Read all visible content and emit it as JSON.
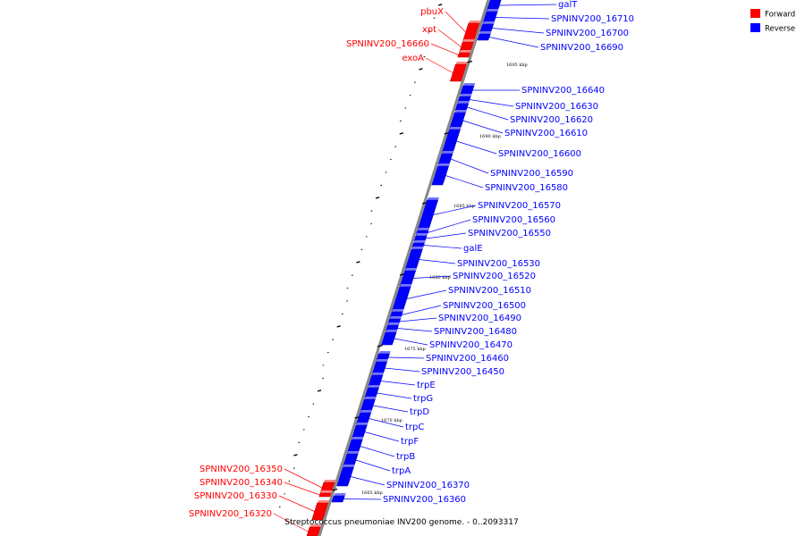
{
  "caption": "Streptococcus pneumoniae INV200 genome. - 0..2093317",
  "legend": [
    {
      "label": "Forward",
      "color": "#ff0000"
    },
    {
      "label": "Reverse",
      "color": "#0000ff"
    }
  ],
  "colors": {
    "forward": "#ff0000",
    "reverse": "#0000ff",
    "backbone": "#888888"
  },
  "ticks": [
    "1695 kbp",
    "1690 kbp",
    "1685 kbp",
    "1680 kbp",
    "1675 kbp",
    "1670 kbp",
    "1665 kbp"
  ],
  "genes": [
    {
      "name": "galT",
      "strand": "reverse"
    },
    {
      "name": "SPNINV200_16710",
      "strand": "reverse"
    },
    {
      "name": "SPNINV200_16700",
      "strand": "reverse"
    },
    {
      "name": "SPNINV200_16690",
      "strand": "reverse"
    },
    {
      "name": "pbuX",
      "strand": "forward"
    },
    {
      "name": "xpt",
      "strand": "forward"
    },
    {
      "name": "SPNINV200_16660",
      "strand": "forward"
    },
    {
      "name": "exoA",
      "strand": "forward"
    },
    {
      "name": "SPNINV200_16640",
      "strand": "reverse"
    },
    {
      "name": "SPNINV200_16630",
      "strand": "reverse"
    },
    {
      "name": "SPNINV200_16620",
      "strand": "reverse"
    },
    {
      "name": "SPNINV200_16610",
      "strand": "reverse"
    },
    {
      "name": "SPNINV200_16600",
      "strand": "reverse"
    },
    {
      "name": "SPNINV200_16590",
      "strand": "reverse"
    },
    {
      "name": "SPNINV200_16580",
      "strand": "reverse"
    },
    {
      "name": "SPNINV200_16570",
      "strand": "reverse"
    },
    {
      "name": "SPNINV200_16560",
      "strand": "reverse"
    },
    {
      "name": "SPNINV200_16550",
      "strand": "reverse"
    },
    {
      "name": "galE",
      "strand": "reverse"
    },
    {
      "name": "SPNINV200_16530",
      "strand": "reverse"
    },
    {
      "name": "SPNINV200_16520",
      "strand": "reverse"
    },
    {
      "name": "SPNINV200_16510",
      "strand": "reverse"
    },
    {
      "name": "SPNINV200_16500",
      "strand": "reverse"
    },
    {
      "name": "SPNINV200_16490",
      "strand": "reverse"
    },
    {
      "name": "SPNINV200_16480",
      "strand": "reverse"
    },
    {
      "name": "SPNINV200_16470",
      "strand": "reverse"
    },
    {
      "name": "SPNINV200_16460",
      "strand": "reverse"
    },
    {
      "name": "SPNINV200_16450",
      "strand": "reverse"
    },
    {
      "name": "trpE",
      "strand": "reverse"
    },
    {
      "name": "trpG",
      "strand": "reverse"
    },
    {
      "name": "trpD",
      "strand": "reverse"
    },
    {
      "name": "trpC",
      "strand": "reverse"
    },
    {
      "name": "trpF",
      "strand": "reverse"
    },
    {
      "name": "trpB",
      "strand": "reverse"
    },
    {
      "name": "trpA",
      "strand": "reverse"
    },
    {
      "name": "SPNINV200_16370",
      "strand": "reverse"
    },
    {
      "name": "SPNINV200_16360",
      "strand": "reverse"
    },
    {
      "name": "SPNINV200_16350",
      "strand": "forward"
    },
    {
      "name": "SPNINV200_16340",
      "strand": "forward"
    },
    {
      "name": "SPNINV200_16330",
      "strand": "forward"
    },
    {
      "name": "SPNINV200_16320",
      "strand": "forward"
    }
  ]
}
